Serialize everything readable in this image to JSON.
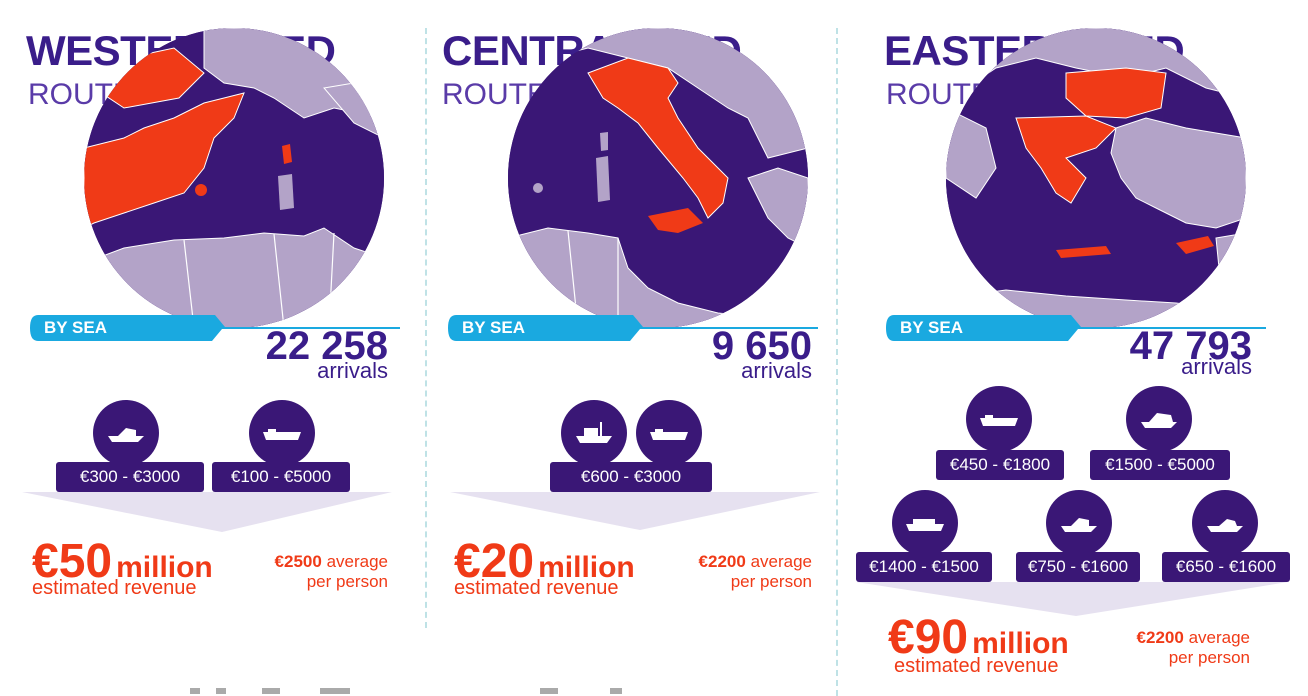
{
  "colors": {
    "title": "#3a1d8a",
    "sea": "#3a1776",
    "land": "#b3a3c8",
    "highlight": "#f03a17",
    "sea_bar": "#1aa9e0",
    "wedge": "#e6e1f0"
  },
  "routes": [
    {
      "title": "WESTERN MED",
      "subtitle": "ROUTE",
      "sea_label": "BY SEA",
      "arrivals_number": "22 258",
      "arrivals_label": "arrivals",
      "boats": [
        {
          "icon": "speedboat-icon",
          "price": "€300 - €3000"
        },
        {
          "icon": "cargo-ship-icon",
          "price": "€100 - €5000"
        }
      ],
      "revenue_amount": "€50",
      "revenue_unit": "million",
      "revenue_label": "estimated revenue",
      "average_amount": "€2500",
      "average_word": "average",
      "average_suffix": "per person"
    },
    {
      "title": "CENTRAL MED",
      "subtitle": "ROUTE",
      "sea_label": "BY SEA",
      "arrivals_number": "9 650",
      "arrivals_label": "arrivals",
      "boats": [
        {
          "icon": "fishing-boat-icon",
          "price": "€600 - €3000"
        },
        {
          "icon": "cargo-ship-icon",
          "price": ""
        }
      ],
      "revenue_amount": "€20",
      "revenue_unit": "million",
      "revenue_label": "estimated revenue",
      "average_amount": "€2200",
      "average_word": "average",
      "average_suffix": "per person"
    },
    {
      "title": "EASTERN MED",
      "subtitle": "ROUTE",
      "sea_label": "BY SEA",
      "arrivals_number": "47 793",
      "arrivals_label": "arrivals",
      "boats": [
        {
          "icon": "cargo-ship-icon",
          "price": "€450 - €1800"
        },
        {
          "icon": "yacht-icon",
          "price": "€1500 - €5000"
        },
        {
          "icon": "ferry-icon",
          "price": "€1400 - €1500"
        },
        {
          "icon": "speedboat-icon",
          "price": "€750 - €1600"
        },
        {
          "icon": "motorboat-icon",
          "price": "€650 - €1600"
        }
      ],
      "revenue_amount": "€90",
      "revenue_unit": "million",
      "revenue_label": "estimated revenue",
      "average_amount": "€2200",
      "average_word": "average",
      "average_suffix": "per person"
    }
  ]
}
